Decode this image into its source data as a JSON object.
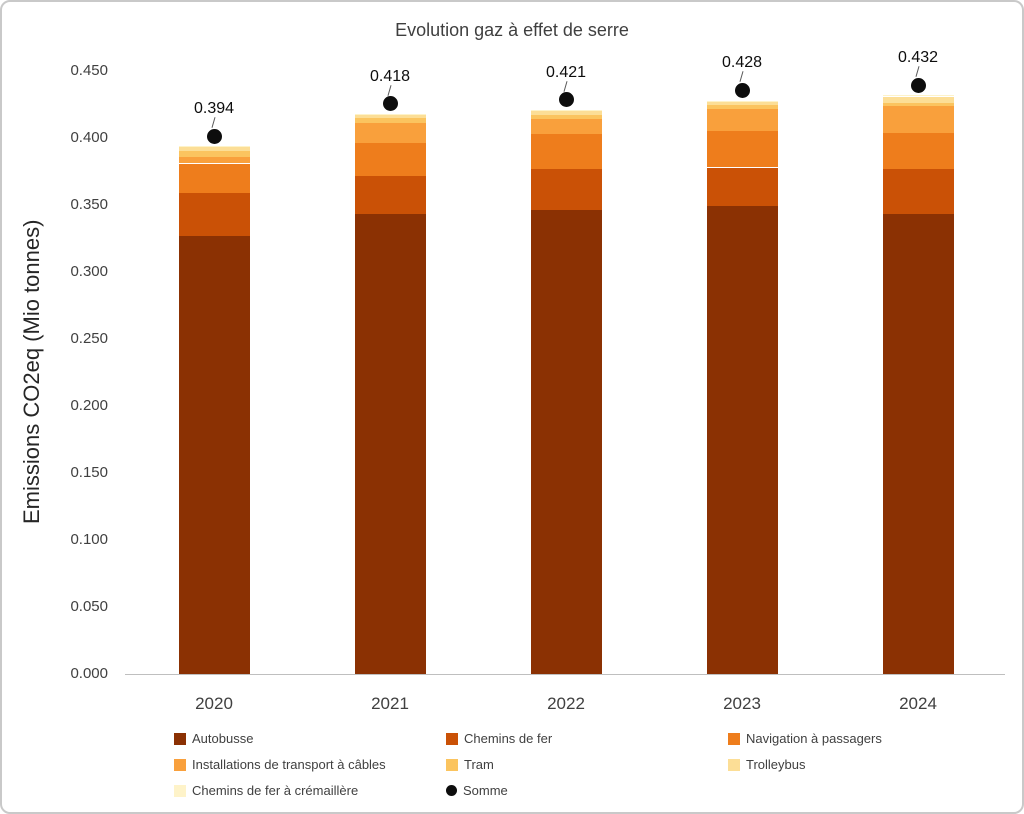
{
  "title": "Evolution gaz à effet de serre",
  "y_axis": {
    "label": "Emissions CO2eq (Mio tonnes)",
    "ticks": [
      "0.450",
      "0.400",
      "0.350",
      "0.300",
      "0.250",
      "0.200",
      "0.150",
      "0.100",
      "0.050",
      "0.000"
    ]
  },
  "chart_data": {
    "type": "bar",
    "stacked": true,
    "title": "Evolution gaz à effet de serre",
    "xlabel": "",
    "ylabel": "Emissions CO2eq (Mio tonnes)",
    "ylim": [
      0,
      0.45
    ],
    "grid": false,
    "legend_position": "bottom",
    "categories": [
      "2020",
      "2021",
      "2022",
      "2023",
      "2024"
    ],
    "series": [
      {
        "name": "Autobusse",
        "stack": true,
        "color": "#8B3103",
        "values": [
          0.327,
          0.343,
          0.346,
          0.349,
          0.343
        ]
      },
      {
        "name": "Chemins de fer",
        "stack": true,
        "color": "#CA5106",
        "values": [
          0.032,
          0.029,
          0.031,
          0.029,
          0.034
        ]
      },
      {
        "name": "Navigation à passagers",
        "stack": true,
        "color": "#EE7D1C",
        "values": [
          0.022,
          0.024,
          0.026,
          0.027,
          0.027
        ]
      },
      {
        "name": "Installations de transport à câbles",
        "stack": true,
        "color": "#F9A03C",
        "values": [
          0.005,
          0.015,
          0.011,
          0.017,
          0.02
        ]
      },
      {
        "name": "Tram",
        "stack": true,
        "color": "#FBC45F",
        "values": [
          0.004,
          0.004,
          0.003,
          0.0025,
          0.0025
        ]
      },
      {
        "name": "Trolleybus",
        "stack": true,
        "color": "#FCDE96",
        "values": [
          0.003,
          0.002,
          0.003,
          0.0025,
          0.0045
        ]
      },
      {
        "name": "Chemins de fer à crémaillère",
        "stack": true,
        "color": "#FEF3C9",
        "values": [
          0.001,
          0.001,
          0.001,
          0.001,
          0.001
        ]
      },
      {
        "name": "Somme",
        "stack": false,
        "type": "scatter",
        "color": "#0D0D0D",
        "values": [
          0.394,
          0.418,
          0.421,
          0.428,
          0.432
        ]
      }
    ],
    "data_labels": [
      "0.394",
      "0.418",
      "0.421",
      "0.428",
      "0.432"
    ]
  },
  "legend": {
    "items": [
      {
        "label": "Autobusse",
        "color": "#8B3103",
        "marker": "square"
      },
      {
        "label": "Chemins de fer",
        "color": "#CA5106",
        "marker": "square"
      },
      {
        "label": "Navigation à passagers",
        "color": "#EE7D1C",
        "marker": "square"
      },
      {
        "label": "Installations de transport à câbles",
        "color": "#F9A03C",
        "marker": "square"
      },
      {
        "label": "Tram",
        "color": "#FBC45F",
        "marker": "square"
      },
      {
        "label": "Trolleybus",
        "color": "#FCDE96",
        "marker": "square"
      },
      {
        "label": "Chemins de fer à crémaillère",
        "color": "#FEF3C9",
        "marker": "square"
      },
      {
        "label": "Somme",
        "color": "#0D0D0D",
        "marker": "circle"
      }
    ]
  }
}
